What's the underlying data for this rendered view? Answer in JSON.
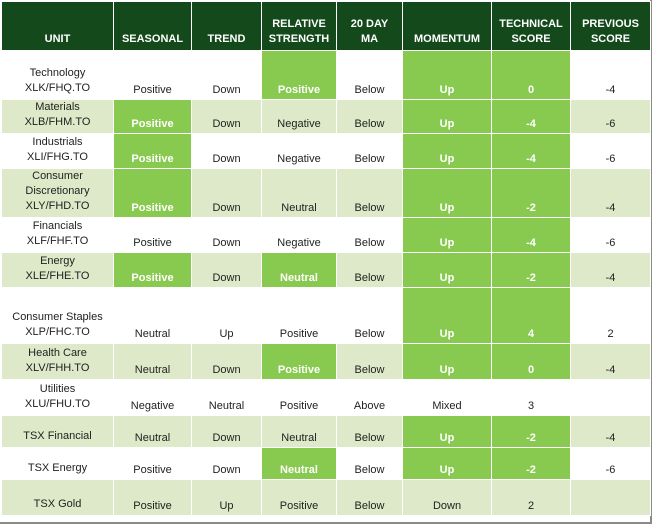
{
  "headers": {
    "unit": "UNIT",
    "seasonal": "SEASONAL",
    "trend": "TREND",
    "relative_strength": [
      "RELATIVE",
      "STRENGTH"
    ],
    "ma20": [
      "20 DAY",
      "MA"
    ],
    "momentum": "MOMENTUM",
    "technical_score": [
      "TECHNICAL",
      "SCORE"
    ],
    "previous_score": [
      "PREVIOUS",
      "SCORE"
    ]
  },
  "colors": {
    "header_bg": "#14491b",
    "highlight": "#88ca4f",
    "band_light": "#dde9c8"
  },
  "rows": [
    {
      "unit": [
        "Technology",
        "XLK/FHQ.TO"
      ],
      "seasonal": "Positive",
      "trend": "Down",
      "relative_strength": "Positive",
      "ma20": "Below",
      "momentum": "Up",
      "technical_score": "0",
      "previous_score": "-4"
    },
    {
      "unit": [
        "Materials",
        "XLB/FHM.TO"
      ],
      "seasonal": "Positive",
      "trend": "Down",
      "relative_strength": "Negative",
      "ma20": "Below",
      "momentum": "Up",
      "technical_score": "-4",
      "previous_score": "-6"
    },
    {
      "unit": [
        "Industrials",
        "XLI/FHG.TO"
      ],
      "seasonal": "Positive",
      "trend": "Down",
      "relative_strength": "Negative",
      "ma20": "Below",
      "momentum": "Up",
      "technical_score": "-4",
      "previous_score": "-6"
    },
    {
      "unit": [
        "Consumer",
        "Discretionary",
        "XLY/FHD.TO"
      ],
      "seasonal": "Positive",
      "trend": "Down",
      "relative_strength": "Neutral",
      "ma20": "Below",
      "momentum": "Up",
      "technical_score": "-2",
      "previous_score": "-4"
    },
    {
      "unit": [
        "Financials",
        "XLF/FHF.TO"
      ],
      "seasonal": "Positive",
      "trend": "Down",
      "relative_strength": "Negative",
      "ma20": "Below",
      "momentum": "Up",
      "technical_score": "-4",
      "previous_score": "-6"
    },
    {
      "unit": [
        "Energy",
        "XLE/FHE.TO"
      ],
      "seasonal": "Positive",
      "trend": "Down",
      "relative_strength": "Neutral",
      "ma20": "Below",
      "momentum": "Up",
      "technical_score": "-2",
      "previous_score": "-4"
    },
    {
      "unit": [
        "Consumer Staples",
        "XLP/FHC.TO"
      ],
      "seasonal": "Neutral",
      "trend": "Up",
      "relative_strength": "Positive",
      "ma20": "Below",
      "momentum": "Up",
      "technical_score": "4",
      "previous_score": "2"
    },
    {
      "unit": [
        "Health Care",
        "XLV/FHH.TO"
      ],
      "seasonal": "Neutral",
      "trend": "Down",
      "relative_strength": "Positive",
      "ma20": "Below",
      "momentum": "Up",
      "technical_score": "0",
      "previous_score": "-4"
    },
    {
      "unit": [
        "Utilities",
        "XLU/FHU.TO"
      ],
      "seasonal": "Negative",
      "trend": "Neutral",
      "relative_strength": "Positive",
      "ma20": "Above",
      "momentum": "Mixed",
      "technical_score": "3",
      "previous_score": ""
    },
    {
      "unit": [
        "TSX Financial"
      ],
      "seasonal": "Neutral",
      "trend": "Down",
      "relative_strength": "Neutral",
      "ma20": "Below",
      "momentum": "Up",
      "technical_score": "-2",
      "previous_score": "-4"
    },
    {
      "unit": [
        "TSX Energy"
      ],
      "seasonal": "Positive",
      "trend": "Down",
      "relative_strength": "Neutral",
      "ma20": "Below",
      "momentum": "Up",
      "technical_score": "-2",
      "previous_score": "-6"
    },
    {
      "unit": [
        "TSX Gold"
      ],
      "seasonal": "Positive",
      "trend": "Up",
      "relative_strength": "Positive",
      "ma20": "Below",
      "momentum": "Down",
      "technical_score": "2",
      "previous_score": ""
    }
  ]
}
